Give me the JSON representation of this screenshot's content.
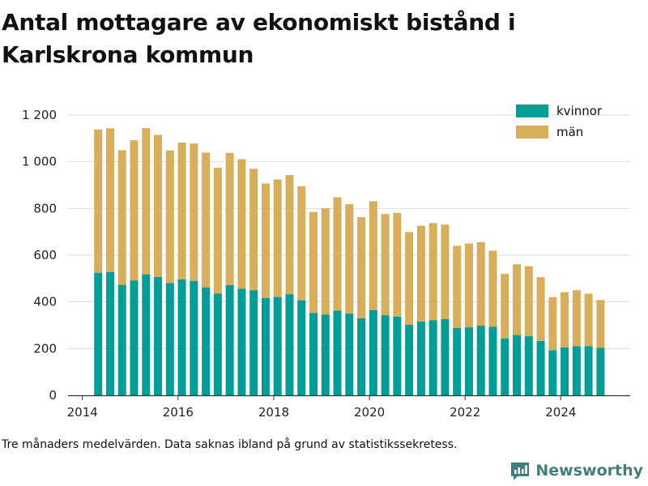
{
  "title": "Antal mottagare av ekonomiskt bistånd i Karlskrona kommun",
  "footnote": "Tre månaders medelvärden. Data saknas ibland på grund av statistikssekretess.",
  "brand": "Newsworthy",
  "colors": {
    "kvinnor": "#009e96",
    "man": "#d9ae5a",
    "grid": "#dddddd",
    "axis": "#333333",
    "brand": "#3f7f7e"
  },
  "chart_data": {
    "type": "bar",
    "stacked": true,
    "title": "Antal mottagare av ekonomiskt bistånd i Karlskrona kommun",
    "xlabel": "",
    "ylabel": "",
    "xlim": [
      2013.7,
      2025.45
    ],
    "ylim": [
      0,
      1200
    ],
    "xticks": [
      {
        "value": 2014,
        "label": "2014"
      },
      {
        "value": 2016,
        "label": "2016"
      },
      {
        "value": 2018,
        "label": "2018"
      },
      {
        "value": 2020,
        "label": "2020"
      },
      {
        "value": 2022,
        "label": "2022"
      },
      {
        "value": 2024,
        "label": "2024"
      }
    ],
    "yticks": [
      {
        "value": 0,
        "label": "0"
      },
      {
        "value": 200,
        "label": "200"
      },
      {
        "value": 400,
        "label": "400"
      },
      {
        "value": 600,
        "label": "600"
      },
      {
        "value": 800,
        "label": "800"
      },
      {
        "value": 1000,
        "label": "1 000"
      },
      {
        "value": 1200,
        "label": "1 200"
      }
    ],
    "grid": "horizontal",
    "legend": "top-right",
    "x": [
      2014.33,
      2014.58,
      2014.83,
      2015.08,
      2015.33,
      2015.58,
      2015.83,
      2016.08,
      2016.33,
      2016.58,
      2016.83,
      2017.08,
      2017.33,
      2017.58,
      2017.83,
      2018.08,
      2018.33,
      2018.58,
      2018.83,
      2019.08,
      2019.33,
      2019.58,
      2019.83,
      2020.08,
      2020.33,
      2020.58,
      2020.83,
      2021.08,
      2021.33,
      2021.58,
      2021.83,
      2022.08,
      2022.33,
      2022.58,
      2022.83,
      2023.08,
      2023.33,
      2023.58,
      2023.83,
      2024.08,
      2024.33,
      2024.58,
      2024.83
    ],
    "series": [
      {
        "name": "kvinnor",
        "values": [
          525,
          528,
          473,
          492,
          518,
          507,
          481,
          496,
          490,
          462,
          436,
          472,
          456,
          450,
          417,
          421,
          433,
          407,
          352,
          346,
          363,
          350,
          330,
          365,
          343,
          337,
          302,
          316,
          322,
          326,
          288,
          291,
          298,
          293,
          244,
          258,
          253,
          233,
          193,
          205,
          210,
          211,
          203
        ]
      },
      {
        "name": "män",
        "values": [
          613,
          615,
          576,
          600,
          626,
          608,
          567,
          586,
          588,
          577,
          538,
          566,
          555,
          520,
          490,
          503,
          510,
          488,
          433,
          455,
          485,
          468,
          433,
          466,
          433,
          444,
          397,
          410,
          415,
          405,
          352,
          359,
          358,
          326,
          276,
          303,
          300,
          273,
          227,
          236,
          240,
          224,
          205
        ]
      }
    ]
  }
}
